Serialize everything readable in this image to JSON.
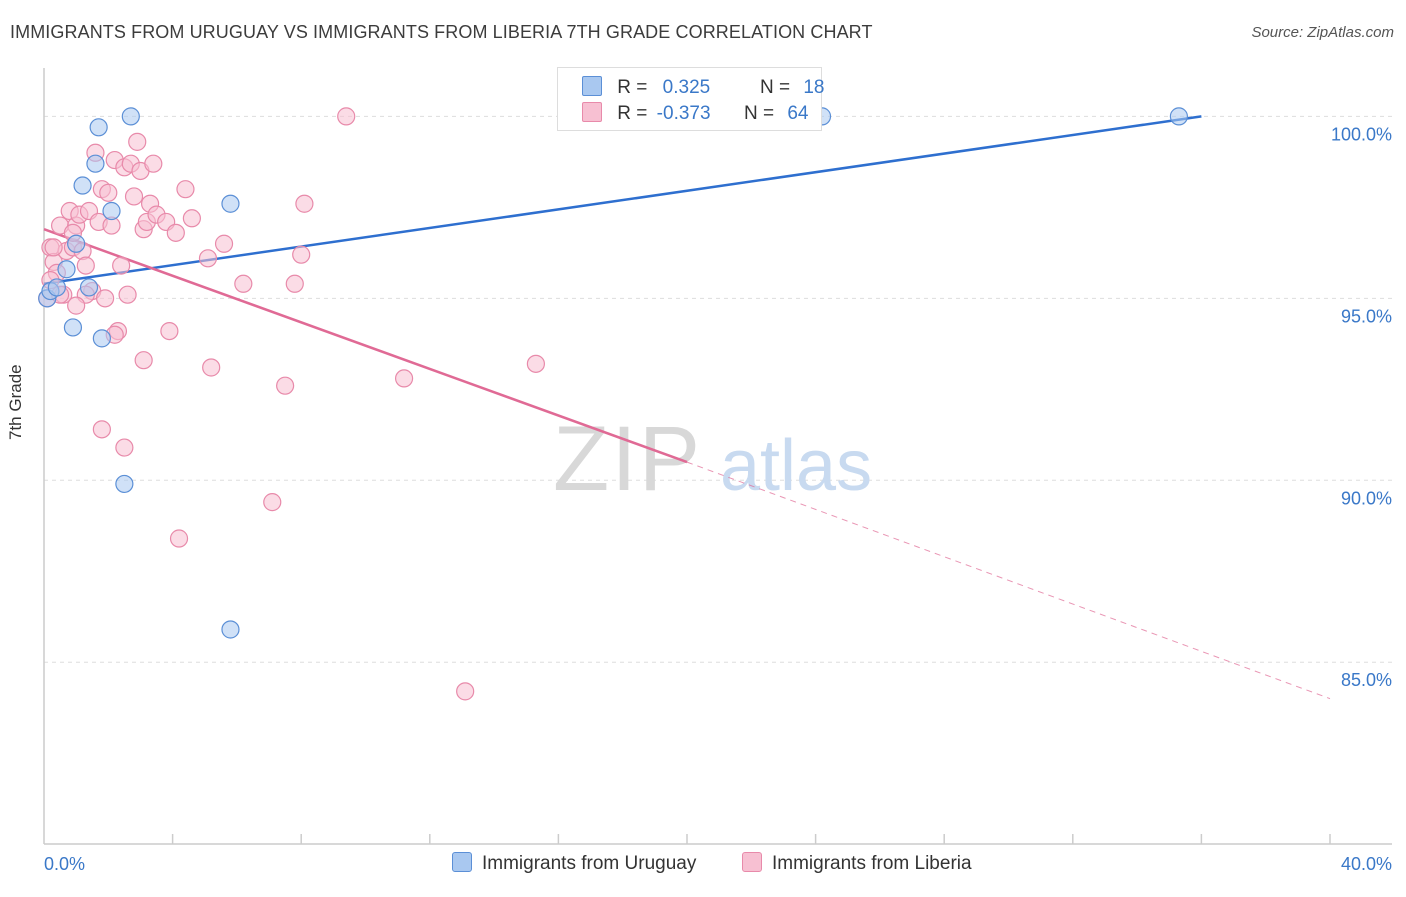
{
  "title": "IMMIGRANTS FROM URUGUAY VS IMMIGRANTS FROM LIBERIA 7TH GRADE CORRELATION CHART",
  "source": "Source: ZipAtlas.com",
  "watermark": {
    "zip": "ZIP",
    "atlas": "atlas"
  },
  "legend": {
    "rows": [
      {
        "r_label": "R =",
        "r_value": "0.325",
        "n_label": "N =",
        "n_value": "18"
      },
      {
        "r_label": "R =",
        "r_value": "-0.373",
        "n_label": "N =",
        "n_value": "64"
      }
    ]
  },
  "bottom_legend": [
    "Immigrants from Uruguay",
    "Immigrants from Liberia"
  ],
  "colors": {
    "uruguay_fill": "#a9c8f0",
    "uruguay_stroke": "#5b8fd6",
    "uruguay_line": "#2e6fcf",
    "liberia_fill": "#f7c0d2",
    "liberia_stroke": "#e88aaa",
    "liberia_line": "#e06a95",
    "tick_label": "#3a78c8",
    "grid": "#dddddd"
  },
  "chart_data": {
    "type": "scatter",
    "title": "IMMIGRANTS FROM URUGUAY VS IMMIGRANTS FROM LIBERIA 7TH GRADE CORRELATION CHART",
    "xlabel": "",
    "ylabel": "7th Grade",
    "xlim": [
      0,
      40
    ],
    "ylim": [
      80.5,
      101.0
    ],
    "x_tick_labels": [
      "0.0%",
      "40.0%"
    ],
    "y_ticks": [
      85,
      90,
      95,
      100
    ],
    "y_tick_labels": [
      "85.0%",
      "90.0%",
      "95.0%",
      "100.0%"
    ],
    "series": [
      {
        "name": "Immigrants from Uruguay",
        "R": 0.325,
        "N": 18,
        "points": [
          [
            0.1,
            95.0
          ],
          [
            0.2,
            95.2
          ],
          [
            0.4,
            95.3
          ],
          [
            0.7,
            95.8
          ],
          [
            0.9,
            94.2
          ],
          [
            1.0,
            96.5
          ],
          [
            1.2,
            98.1
          ],
          [
            1.6,
            98.7
          ],
          [
            1.7,
            99.7
          ],
          [
            1.8,
            93.9
          ],
          [
            2.1,
            97.4
          ],
          [
            2.5,
            89.9
          ],
          [
            2.7,
            100.0
          ],
          [
            5.8,
            97.6
          ],
          [
            5.8,
            85.9
          ],
          [
            24.2,
            100.0
          ],
          [
            35.3,
            100.0
          ],
          [
            1.4,
            95.3
          ]
        ],
        "trend": {
          "x": [
            0,
            36
          ],
          "y": [
            95.4,
            100.0
          ]
        }
      },
      {
        "name": "Immigrants from Liberia",
        "R": -0.373,
        "N": 64,
        "points": [
          [
            0.1,
            95.0
          ],
          [
            0.2,
            96.4
          ],
          [
            0.3,
            96.0
          ],
          [
            0.4,
            95.7
          ],
          [
            0.5,
            97.0
          ],
          [
            0.6,
            95.1
          ],
          [
            0.7,
            96.3
          ],
          [
            0.8,
            97.4
          ],
          [
            0.9,
            96.4
          ],
          [
            1.0,
            97.0
          ],
          [
            1.1,
            97.3
          ],
          [
            1.2,
            96.3
          ],
          [
            1.3,
            95.9
          ],
          [
            1.4,
            97.4
          ],
          [
            1.5,
            95.2
          ],
          [
            1.6,
            99.0
          ],
          [
            1.7,
            97.1
          ],
          [
            1.8,
            98.0
          ],
          [
            1.9,
            95.0
          ],
          [
            2.0,
            97.9
          ],
          [
            2.1,
            97.0
          ],
          [
            2.2,
            98.8
          ],
          [
            2.3,
            94.1
          ],
          [
            2.4,
            95.9
          ],
          [
            2.5,
            98.6
          ],
          [
            2.6,
            95.1
          ],
          [
            2.7,
            98.7
          ],
          [
            2.8,
            97.8
          ],
          [
            2.9,
            99.3
          ],
          [
            3.0,
            98.5
          ],
          [
            3.1,
            96.9
          ],
          [
            3.2,
            97.1
          ],
          [
            3.3,
            97.6
          ],
          [
            3.4,
            98.7
          ],
          [
            3.5,
            97.3
          ],
          [
            3.8,
            97.1
          ],
          [
            4.1,
            96.8
          ],
          [
            4.4,
            98.0
          ],
          [
            4.6,
            97.2
          ],
          [
            5.1,
            96.1
          ],
          [
            5.6,
            96.5
          ],
          [
            6.2,
            95.4
          ],
          [
            7.8,
            95.4
          ],
          [
            8.0,
            96.2
          ],
          [
            8.1,
            97.6
          ],
          [
            9.4,
            100.0
          ],
          [
            11.2,
            92.8
          ],
          [
            15.3,
            93.2
          ],
          [
            13.1,
            84.2
          ],
          [
            4.2,
            88.4
          ],
          [
            5.2,
            93.1
          ],
          [
            7.5,
            92.6
          ],
          [
            7.1,
            89.4
          ],
          [
            3.1,
            93.3
          ],
          [
            3.9,
            94.1
          ],
          [
            2.5,
            90.9
          ],
          [
            1.8,
            91.4
          ],
          [
            0.3,
            96.4
          ],
          [
            0.5,
            95.1
          ],
          [
            1.3,
            95.1
          ],
          [
            1.0,
            94.8
          ],
          [
            2.2,
            94.0
          ],
          [
            0.2,
            95.5
          ],
          [
            0.9,
            96.8
          ]
        ],
        "trend": {
          "x": [
            0,
            20
          ],
          "y": [
            96.9,
            90.5
          ]
        },
        "trend_dashed": {
          "x": [
            20,
            40
          ],
          "y": [
            90.5,
            84.0
          ]
        }
      }
    ]
  }
}
